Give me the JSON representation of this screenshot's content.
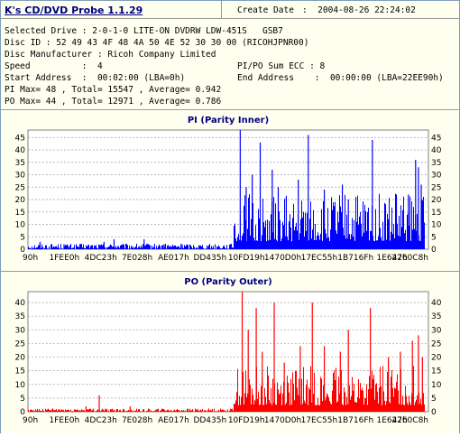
{
  "header": {
    "app_title": "K's CD/DVD Probe 1.1.29",
    "create_date_label": "Create Date",
    "create_date_value": ":  2004-08-26 22:24:02",
    "selected_drive": "Selected Drive : 2-0-1-0 LITE-ON DVDRW LDW-451S   GSB7",
    "disc_id": "Disc ID : 52 49 43 4F 48 4A 50 4E 52 30 30 00 (RICOHJPNR00)",
    "disc_manufacturer": "Disc Manufacturer : Ricoh Company Limited",
    "speed": "Speed          :  4",
    "pipo_sum": "PI/PO Sum ECC : 8",
    "start_address": "Start Address  :  00:02:00 (LBA=0h)",
    "end_address": "End Address    :  00:00:00 (LBA=22EE90h)",
    "pi_stats": "PI Max= 48 , Total= 15547 , Average= 0.942",
    "po_stats": "PO Max= 44 , Total= 12971 , Average= 0.786"
  },
  "chart_data": [
    {
      "type": "bar",
      "title": "PI (Parity Inner)",
      "color": "#0000ff",
      "x_ticks": [
        "90h",
        "1FEE0h",
        "4DC23h",
        "7E028h",
        "AE017h",
        "DD435h",
        "10FD19h",
        "1470D0h",
        "17EC55h",
        "1B716Fh",
        "1E647h",
        "2260C8h"
      ],
      "ylim": [
        0,
        48
      ],
      "y_ticks": [
        0,
        5,
        10,
        15,
        20,
        25,
        30,
        35,
        40,
        45
      ],
      "grid": true,
      "segments": [
        {
          "from": 0.0,
          "to": 0.515,
          "baseline": 1,
          "spikes": [
            [
              0.03,
              3
            ],
            [
              0.09,
              2
            ],
            [
              0.19,
              3
            ],
            [
              0.215,
              4
            ],
            [
              0.29,
              4
            ],
            [
              0.34,
              2
            ],
            [
              0.385,
              2
            ],
            [
              0.45,
              1
            ]
          ]
        },
        {
          "from": 0.515,
          "to": 0.99,
          "baseline": 8,
          "spikes": [
            [
              0.53,
              48
            ],
            [
              0.545,
              25
            ],
            [
              0.56,
              30
            ],
            [
              0.58,
              43
            ],
            [
              0.61,
              32
            ],
            [
              0.625,
              25
            ],
            [
              0.645,
              21
            ],
            [
              0.675,
              28
            ],
            [
              0.7,
              46
            ],
            [
              0.74,
              24
            ],
            [
              0.785,
              26
            ],
            [
              0.8,
              20
            ],
            [
              0.86,
              44
            ],
            [
              0.92,
              22
            ],
            [
              0.95,
              22
            ],
            [
              0.968,
              36
            ],
            [
              0.975,
              33
            ],
            [
              0.982,
              26
            ]
          ]
        }
      ]
    },
    {
      "type": "bar",
      "title": "PO (Parity Outer)",
      "color": "#ff0000",
      "x_ticks": [
        "90h",
        "1FEE0h",
        "4DC23h",
        "7E028h",
        "AE017h",
        "DD435h",
        "10FD19h",
        "1470D0h",
        "17EC55h",
        "1B716Fh",
        "1E647h",
        "2260C8h"
      ],
      "ylim": [
        0,
        44
      ],
      "y_ticks": [
        0,
        5,
        10,
        15,
        20,
        25,
        30,
        35,
        40
      ],
      "grid": true,
      "segments": [
        {
          "from": 0.0,
          "to": 0.515,
          "baseline": 0,
          "spikes": [
            [
              0.145,
              2
            ],
            [
              0.178,
              6
            ],
            [
              0.255,
              2
            ]
          ]
        },
        {
          "from": 0.515,
          "to": 0.99,
          "baseline": 6,
          "spikes": [
            [
              0.535,
              44
            ],
            [
              0.55,
              30
            ],
            [
              0.57,
              38
            ],
            [
              0.585,
              22
            ],
            [
              0.615,
              40
            ],
            [
              0.64,
              18
            ],
            [
              0.68,
              24
            ],
            [
              0.71,
              40
            ],
            [
              0.74,
              24
            ],
            [
              0.78,
              22
            ],
            [
              0.8,
              30
            ],
            [
              0.855,
              38
            ],
            [
              0.9,
              20
            ],
            [
              0.93,
              22
            ],
            [
              0.96,
              26
            ],
            [
              0.975,
              28
            ],
            [
              0.985,
              20
            ]
          ]
        }
      ]
    }
  ]
}
